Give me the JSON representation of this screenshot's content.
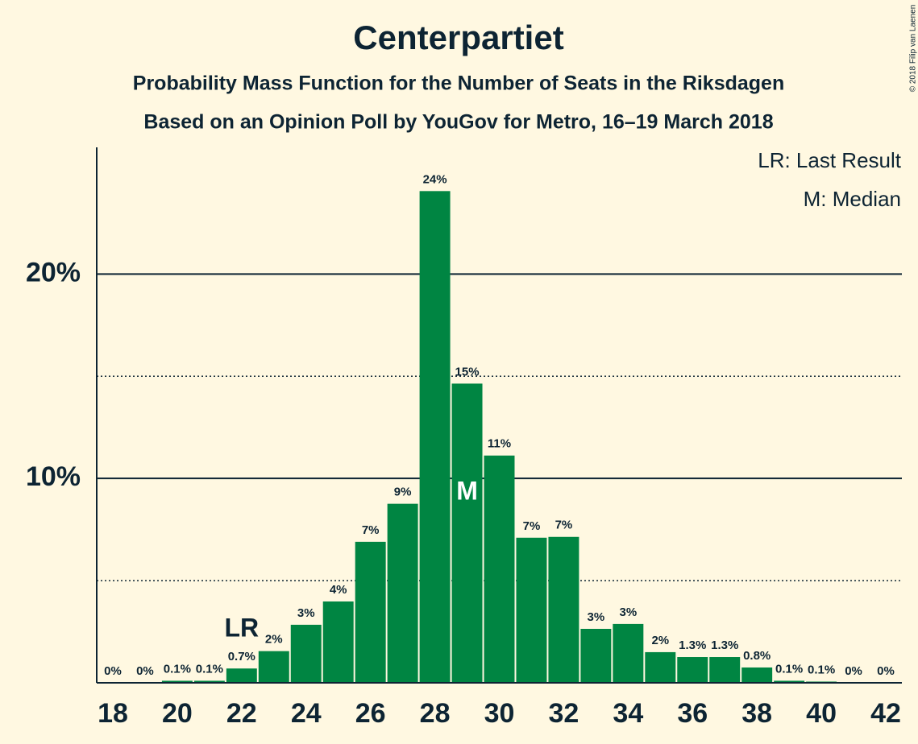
{
  "chart_data": {
    "type": "bar",
    "title": "Centerpartiet",
    "subtitle": "Probability Mass Function for the Number of Seats in the Riksdagen",
    "subtitle2": "Based on an Opinion Poll by YouGov for Metro, 16–19 March 2018",
    "copyright": "© 2018 Filip van Laenen",
    "legend": [
      "LR: Last Result",
      "M: Median"
    ],
    "color": "#008542",
    "x": [
      18,
      19,
      20,
      21,
      22,
      23,
      24,
      25,
      26,
      27,
      28,
      29,
      30,
      31,
      32,
      33,
      34,
      35,
      36,
      37,
      38,
      39,
      40,
      41,
      42
    ],
    "values": [
      0,
      0,
      0.1,
      0.1,
      0.7,
      1.55,
      2.84,
      3.98,
      6.9,
      8.76,
      24.06,
      14.64,
      11.12,
      7.1,
      7.14,
      2.64,
      2.88,
      1.5,
      1.26,
      1.26,
      0.75,
      0.1,
      0.06,
      0,
      0
    ],
    "value_labels": [
      "0%",
      "0%",
      "0.1%",
      "0.1%",
      "0.7%",
      "2%",
      "3%",
      "4%",
      "7%",
      "9%",
      "24%",
      "15%",
      "11%",
      "7%",
      "7%",
      "3%",
      "3%",
      "2%",
      "1.3%",
      "1.3%",
      "0.8%",
      "0.1%",
      "0.1%",
      "0%",
      "0%"
    ],
    "last_result": {
      "label": "LR",
      "seats": 22
    },
    "median": {
      "label": "M",
      "seats": 29
    },
    "xlim": [
      17.5,
      42.5
    ],
    "xticks": [
      18,
      20,
      22,
      24,
      26,
      28,
      30,
      32,
      34,
      36,
      38,
      40,
      42
    ],
    "ylim": [
      0,
      26.2
    ],
    "yticks": [
      {
        "value": 10,
        "label": "10%"
      },
      {
        "value": 20,
        "label": "20%"
      }
    ],
    "minor_yticks": [
      5,
      15
    ],
    "grid": true
  }
}
